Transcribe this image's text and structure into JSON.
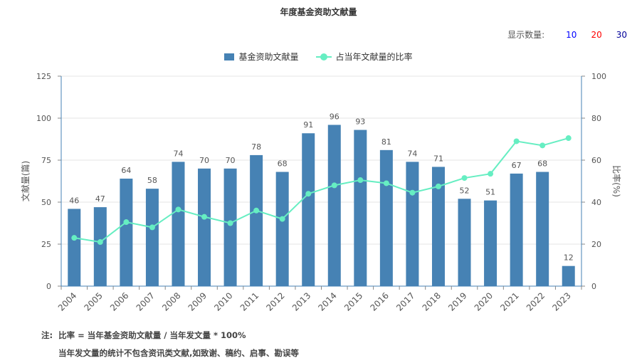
{
  "header": {
    "title": "年度基金资助文献量"
  },
  "display_count": {
    "label": "显示数量:",
    "options": [
      {
        "label": "10",
        "color": "#0000ff"
      },
      {
        "label": "20",
        "color": "#ff0000"
      },
      {
        "label": "30",
        "color": "#000099"
      }
    ]
  },
  "notes": {
    "prefix": "注:",
    "line1": "比率 = 当年基金资助文献量 / 当年发文量 * 100%",
    "line2": "当年发文量的统计不包含资讯类文献,如致谢、稿约、启事、勘误等"
  },
  "chart_data": {
    "type": "bar",
    "title": "年度基金资助文献量",
    "categories": [
      "2004",
      "2005",
      "2006",
      "2007",
      "2008",
      "2009",
      "2010",
      "2011",
      "2012",
      "2013",
      "2014",
      "2015",
      "2016",
      "2017",
      "2018",
      "2019",
      "2020",
      "2021",
      "2022",
      "2023"
    ],
    "series": [
      {
        "name": "基金资助文献量",
        "type": "bar",
        "axis": "left",
        "color": "#4682b4",
        "values": [
          46,
          47,
          64,
          58,
          74,
          70,
          70,
          78,
          68,
          91,
          96,
          93,
          81,
          74,
          71,
          52,
          51,
          67,
          68,
          12
        ]
      },
      {
        "name": "占当年文献量的比率",
        "type": "line",
        "axis": "right",
        "color": "#66eec2",
        "values": [
          23,
          21,
          30.5,
          28,
          36.5,
          33,
          30,
          36,
          32,
          44,
          48,
          50.5,
          49,
          44.5,
          47.5,
          51.5,
          53.5,
          69,
          67,
          70.5
        ]
      }
    ],
    "y_left": {
      "label": "文献量(篇)",
      "ylim": [
        0,
        125
      ],
      "ticks": [
        0,
        25,
        50,
        75,
        100,
        125
      ]
    },
    "y_right": {
      "label": "比率(%)",
      "ylim": [
        0,
        100
      ],
      "ticks": [
        0,
        20,
        40,
        60,
        80,
        100
      ]
    },
    "legend_position": "top-center",
    "grid": true,
    "bar_labels": true
  }
}
